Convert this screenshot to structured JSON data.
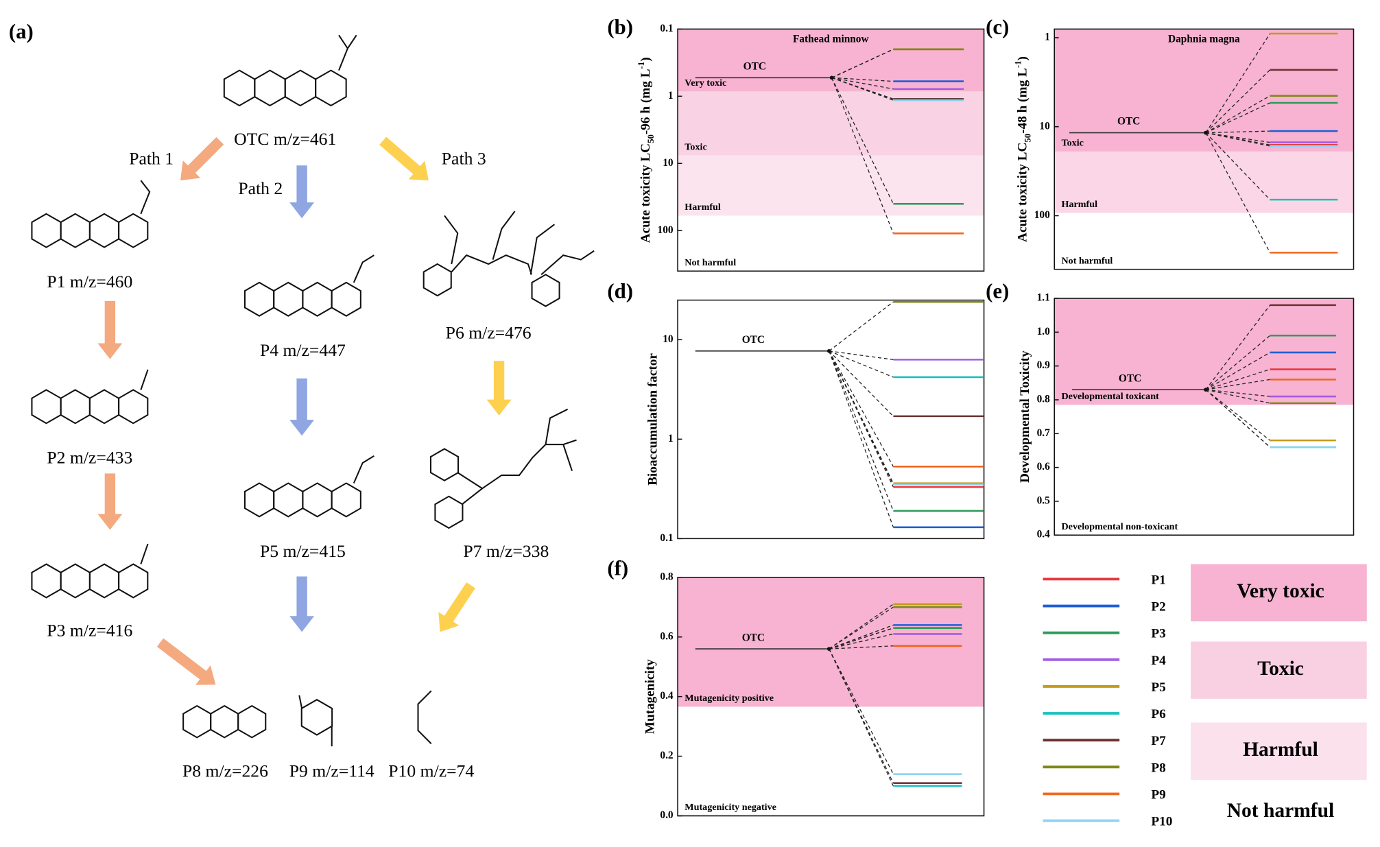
{
  "pathway": {
    "label": "(a)",
    "paths": [
      "Path 1",
      "Path 2",
      "Path 3"
    ],
    "compounds": [
      "OTC m/z=461",
      "P1 m/z=460",
      "P2 m/z=433",
      "P3 m/z=416",
      "P4 m/z=447",
      "P5 m/z=415",
      "P6 m/z=476",
      "P7 m/z=338",
      "P8 m/z=226",
      "P9 m/z=114",
      "P10 m/z=74"
    ]
  },
  "legend": {
    "series": [
      {
        "name": "P1",
        "color": "#e8383d"
      },
      {
        "name": "P2",
        "color": "#1f5fd6"
      },
      {
        "name": "P3",
        "color": "#2e9b5a"
      },
      {
        "name": "P4",
        "color": "#a45de0"
      },
      {
        "name": "P5",
        "color": "#c49a1c"
      },
      {
        "name": "P6",
        "color": "#18c0c0"
      },
      {
        "name": "P7",
        "color": "#6b3232"
      },
      {
        "name": "P8",
        "color": "#7f8a1a"
      },
      {
        "name": "P9",
        "color": "#f2661b"
      },
      {
        "name": "P10",
        "color": "#8fd3f0"
      }
    ],
    "zones": [
      {
        "label": "Very toxic",
        "color": "#f7b3d1"
      },
      {
        "label": "Toxic",
        "color": "#f9d0e2"
      },
      {
        "label": "Harmful",
        "color": "#fbe1ec"
      },
      {
        "label": "Not harmful",
        "color": "#ffffff"
      }
    ]
  },
  "chart_data": [
    {
      "type": "level",
      "panel": "(b)",
      "title": "Fathead minnow",
      "y_label": [
        {
          "text": "Acute toxicity LC"
        },
        {
          "text": "50",
          "sub": true
        },
        {
          "text": "-96 h (mg L"
        },
        {
          "text": "-1",
          "sup": true
        },
        {
          "text": ")"
        }
      ],
      "log_scale": true,
      "inverted": true,
      "ylim": [
        0.1,
        400
      ],
      "yticks": [
        0.1,
        1,
        10,
        100
      ],
      "zones": [
        {
          "from": 0.1,
          "to": 0.85,
          "label": "Very toxic",
          "color": "#f7b3d1"
        },
        {
          "from": 0.85,
          "to": 7.6,
          "label": "Toxic",
          "color": "#f9d3e3"
        },
        {
          "from": 7.6,
          "to": 60,
          "label": "Harmful",
          "color": "#fce4ee"
        },
        {
          "from": 60,
          "to": 400,
          "label": "Not harmful",
          "color": "#ffffff"
        }
      ],
      "reference": {
        "label": "OTC",
        "value": 0.53
      },
      "values": [
        0.2,
        0.6,
        40,
        0.78,
        0.2,
        1.1,
        1.1,
        0.2,
        110,
        1.15
      ]
    },
    {
      "type": "level",
      "panel": "(c)",
      "title": "Daphnia magna",
      "y_label": [
        {
          "text": "Acute toxicity LC"
        },
        {
          "text": "50",
          "sub": true
        },
        {
          "text": "-48 h (mg L"
        },
        {
          "text": "-1",
          "sup": true
        },
        {
          "text": ")"
        }
      ],
      "log_scale": true,
      "inverted": true,
      "ylim": [
        0.8,
        400
      ],
      "yticks": [
        1,
        10,
        100
      ],
      "zones": [
        {
          "from": 0.8,
          "to": 19,
          "label": "Toxic",
          "color": "#f7b3d1"
        },
        {
          "from": 19,
          "to": 93,
          "label": "Harmful",
          "color": "#fad6e6"
        },
        {
          "from": 93,
          "to": 400,
          "label": "Not harmful",
          "color": "#ffffff"
        }
      ],
      "reference": {
        "label": "OTC",
        "value": 11.7
      },
      "values": [
        16,
        11.2,
        5.4,
        15,
        0.9,
        66,
        2.3,
        4.5,
        260,
        16.5
      ]
    },
    {
      "type": "level",
      "panel": "(d)",
      "y_label": [
        {
          "text": "Bioaccumulation factor"
        }
      ],
      "log_scale": true,
      "inverted": false,
      "ylim": [
        0.1,
        25
      ],
      "yticks": [
        0.1,
        1,
        10
      ],
      "reference": {
        "label": "OTC",
        "value": 7.7
      },
      "values": [
        0.33,
        0.13,
        0.19,
        6.3,
        0.36,
        4.2,
        1.7,
        24,
        0.53,
        0.35
      ]
    },
    {
      "type": "level",
      "panel": "(e)",
      "y_label": [
        {
          "text": "Developmental Toxicity"
        }
      ],
      "log_scale": false,
      "inverted": false,
      "ylim": [
        0.4,
        1.1
      ],
      "yticks": [
        0.4,
        0.5,
        0.6,
        0.7,
        0.8,
        0.9,
        {
          "value": 1,
          "label": "1.0"
        },
        1.1
      ],
      "zones": [
        {
          "from": 0.785,
          "to": 1.1,
          "label": "Developmental toxicant",
          "color": "#f7b3d1"
        },
        {
          "from": 0.4,
          "to": 0.785,
          "label": "Developmental non-toxicant",
          "color": "#ffffff"
        }
      ],
      "reference": {
        "label": "OTC",
        "value": 0.83
      },
      "values": [
        0.89,
        0.94,
        0.99,
        0.81,
        0.68,
        0.66,
        1.08,
        0.79,
        0.86,
        0.66
      ]
    },
    {
      "type": "level",
      "panel": "(f)",
      "y_label": [
        {
          "text": "Mutagenicity"
        }
      ],
      "log_scale": false,
      "inverted": false,
      "ylim": [
        0,
        0.8
      ],
      "yticks": [
        {
          "value": 0,
          "label": "0.0"
        },
        0.2,
        0.4,
        0.6,
        0.8
      ],
      "zones": [
        {
          "from": 0.366,
          "to": 0.8,
          "label": "Mutagenicity positive",
          "color": "#f7b3d1"
        },
        {
          "from": 0,
          "to": 0.366,
          "label": "Mutagenicity negative",
          "color": "#ffffff"
        }
      ],
      "reference": {
        "label": "OTC",
        "value": 0.56
      },
      "values": [
        0.63,
        0.64,
        0.63,
        0.61,
        0.71,
        0.1,
        0.11,
        0.7,
        0.57,
        0.14
      ]
    }
  ]
}
